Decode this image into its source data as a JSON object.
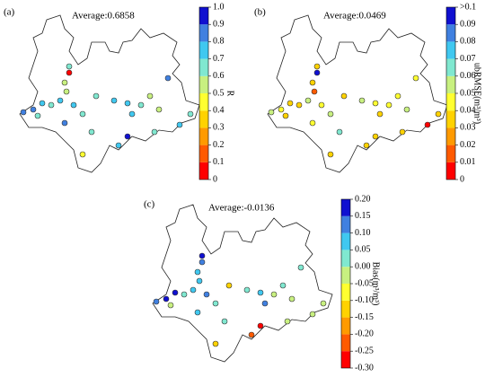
{
  "panels": [
    {
      "label": "(a)",
      "average": "Average:0.6858",
      "colorbar": {
        "label": "R",
        "lim": [
          0,
          1
        ],
        "ticks": [
          0,
          0.1,
          0.2,
          0.3,
          0.4,
          0.5,
          0.6,
          0.7,
          0.8,
          0.9,
          {
            "value": 1,
            "label": "1.0"
          }
        ],
        "colors": [
          "#ff0000",
          "#ff5a00",
          "#ff9a00",
          "#ffd200",
          "#ffff30",
          "#c8f080",
          "#80e8d0",
          "#40c8f0",
          "#4080e0",
          "#1010d0"
        ]
      },
      "stations": [
        0.65,
        0.05,
        0.5,
        0.55,
        0.8,
        0.85,
        0.75,
        0.65,
        0.6,
        0.7,
        0.7,
        0.8,
        0.65,
        0.6,
        0.7,
        0.75,
        0.65,
        0.7,
        0.5,
        0.85,
        0.55,
        0.65,
        0.95,
        0.65,
        0.75,
        0.45,
        0.65,
        0.7
      ]
    },
    {
      "label": "(b)",
      "average": "Average:0.0469",
      "colorbar": {
        "label": "ubRMSE(m³/m³)",
        "lim": [
          0,
          0.1
        ],
        "ticks": [
          0,
          0.01,
          0.02,
          0.03,
          0.04,
          0.05,
          0.06,
          0.07,
          0.08,
          0.09,
          {
            "value": 0.1,
            "label": ">0.1"
          }
        ],
        "colors": [
          "#ff0000",
          "#ff5a00",
          "#ff9a00",
          "#ffd200",
          "#ffff30",
          "#c8f080",
          "#80e8d0",
          "#40c8f0",
          "#4080e0",
          "#1010d0"
        ]
      },
      "stations": [
        0.035,
        0.095,
        0.035,
        0.02,
        0.055,
        0.045,
        0.03,
        0.04,
        0.04,
        0.05,
        0.045,
        0.045,
        0.05,
        0.04,
        0.055,
        0.045,
        0.045,
        0.04,
        0.045,
        0.045,
        0.05,
        0.035,
        0.035,
        0.06,
        0.035,
        0.03,
        0.04,
        0.005
      ]
    },
    {
      "label": "(c)",
      "average": "Average:-0.0136",
      "colorbar": {
        "label": "Bias(m³/m³)",
        "lim": [
          -0.3,
          0.2
        ],
        "ticks": [
          {
            "value": -0.3,
            "label": "-0.30"
          },
          -0.25,
          {
            "value": -0.2,
            "label": "-0.20"
          },
          -0.15,
          {
            "value": -0.1,
            "label": "-0.10"
          },
          -0.05,
          {
            "value": 0,
            "label": "0.00"
          },
          0.05,
          {
            "value": 0.1,
            "label": "0.10"
          },
          0.15,
          {
            "value": 0.2,
            "label": "0.20"
          }
        ],
        "colors": [
          "#ff0000",
          "#ff5a00",
          "#ff9a00",
          "#ffd200",
          "#ffff30",
          "#c8f080",
          "#80e8d0",
          "#40c8f0",
          "#4080e0",
          "#1010d0"
        ]
      },
      "stations": [
        0.15,
        0.1,
        0.05,
        0.05,
        0.1,
        0.2,
        0.15,
        -0.05,
        0,
        0.05,
        0.1,
        0.05,
        0,
        -0.1,
        0,
        0.05,
        -0.05,
        0.1,
        0,
        0,
        -0.05,
        -0.05,
        -0.3,
        0,
        -0.2,
        -0.15,
        -0.05,
        -0.05
      ]
    }
  ]
}
